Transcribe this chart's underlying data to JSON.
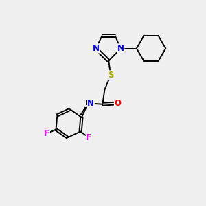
{
  "bg_color": "#f0f0f0",
  "atom_colors": {
    "N": "#0000ee",
    "S": "#aaaa00",
    "O": "#ff0000",
    "F": "#ee00ee",
    "C": "#000000",
    "H": "#000000"
  },
  "bond_color": "#000000",
  "font_size_atom": 8.5,
  "fig_size": [
    3.0,
    3.0
  ],
  "dpi": 100
}
